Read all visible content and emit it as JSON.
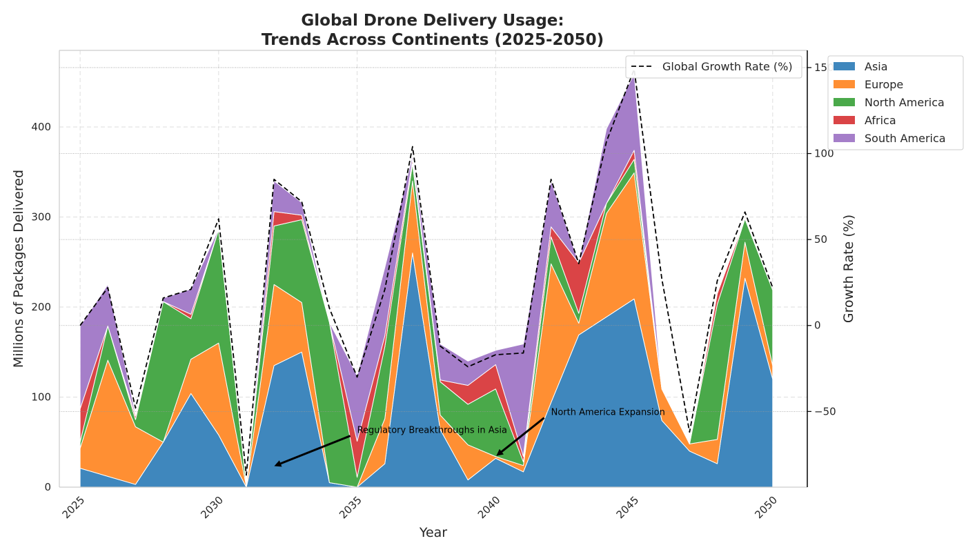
{
  "chart_data": {
    "type": "area",
    "stacked": true,
    "title": "Global Drone Delivery Usage:\nTrends Across Continents (2025-2050)",
    "xlabel": "Year",
    "ylabel": "Millions of Packages Delivered",
    "ylabel_right": "Growth Rate (%)",
    "xlim": [
      2024.25,
      2051.25
    ],
    "ylim": [
      0,
      485
    ],
    "ylim_right": [
      -94,
      160
    ],
    "x_ticks": [
      2025,
      2030,
      2035,
      2040,
      2045,
      2050
    ],
    "y_ticks": [
      0,
      100,
      200,
      300,
      400
    ],
    "y_ticks_right": [
      -50,
      0,
      50,
      100,
      150
    ],
    "grid": true,
    "x": [
      2025,
      2026,
      2027,
      2028,
      2029,
      2030,
      2031,
      2032,
      2033,
      2034,
      2035,
      2036,
      2037,
      2038,
      2039,
      2040,
      2041,
      2042,
      2043,
      2044,
      2045,
      2046,
      2047,
      2048,
      2049,
      2050
    ],
    "series": [
      {
        "name": "Asia",
        "color": "#3f87bd",
        "values": [
          21,
          12,
          3,
          50,
          104,
          58,
          0,
          135,
          150,
          5,
          0,
          26,
          260,
          64,
          8,
          32,
          17,
          94,
          169,
          189,
          209,
          74,
          40,
          26,
          232,
          120
        ]
      },
      {
        "name": "Europe",
        "color": "#ff8f33",
        "values": [
          22,
          129,
          64,
          0,
          38,
          102,
          1,
          90,
          55,
          0,
          0,
          50,
          80,
          16,
          39,
          2,
          7,
          154,
          13,
          115,
          140,
          35,
          8,
          27,
          40,
          15
        ]
      },
      {
        "name": "North America",
        "color": "#4aa94a",
        "values": [
          7,
          38,
          8,
          156,
          45,
          126,
          1,
          65,
          92,
          178,
          11,
          80,
          19,
          37,
          45,
          75,
          4,
          30,
          11,
          11,
          15,
          0,
          0,
          150,
          26,
          84
        ]
      },
      {
        "name": "Africa",
        "color": "#da4446",
        "values": [
          37,
          0,
          4,
          0,
          5,
          0,
          0,
          16,
          5,
          0,
          40,
          12,
          5,
          2,
          21,
          27,
          6,
          11,
          56,
          0,
          10,
          0,
          0,
          12,
          0,
          0
        ]
      },
      {
        "name": "South America",
        "color": "#a57ec9",
        "values": [
          92,
          46,
          2,
          4,
          28,
          1,
          0,
          34,
          14,
          0,
          73,
          76,
          4,
          40,
          27,
          16,
          125,
          51,
          0,
          83,
          85,
          0,
          0,
          0,
          0,
          0
        ]
      }
    ],
    "growth_rate": {
      "name": "Global Growth Rate (%)",
      "color": "#000000",
      "style": "dashed",
      "values": [
        0,
        22,
        -48,
        16,
        21,
        62,
        -87,
        85,
        72,
        10,
        -30,
        21,
        104,
        -12,
        -24,
        -17,
        -16,
        85,
        36,
        107,
        149,
        27,
        -62,
        26,
        66,
        22
      ]
    },
    "annotations": [
      {
        "text": "Regulatory Breakthroughs in Asia",
        "x": 2032,
        "y": 23,
        "text_x": 2035,
        "text_y": 60
      },
      {
        "text": "North America Expansion",
        "x": 2040,
        "y": 35,
        "text_x": 2042,
        "text_y": 80
      }
    ],
    "legend_position": "upper right, outside plot",
    "legend_growth_position": "top-right inside plot"
  }
}
